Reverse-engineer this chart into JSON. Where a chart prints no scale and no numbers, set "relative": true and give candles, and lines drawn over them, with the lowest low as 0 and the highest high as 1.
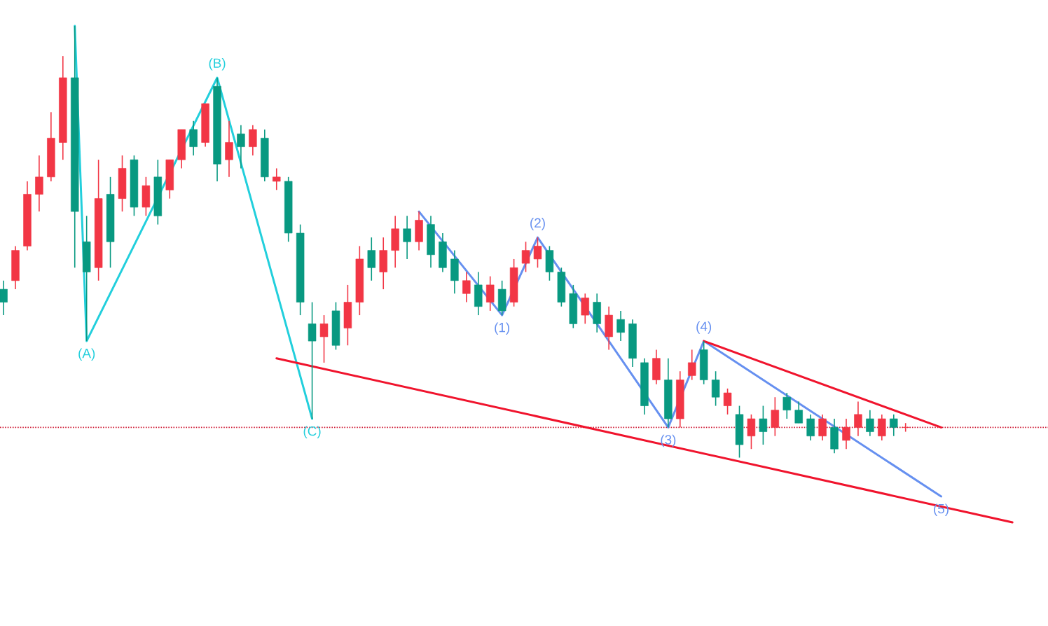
{
  "chart_data": {
    "type": "candlestick",
    "relative": true,
    "categories": [
      null,
      null,
      null,
      null,
      null,
      null,
      null,
      null,
      null,
      null,
      null,
      null,
      null,
      null,
      null,
      null,
      null,
      null,
      null,
      null,
      null,
      null,
      null,
      null,
      null,
      null,
      null,
      null,
      null,
      null,
      null,
      null,
      null,
      null,
      null,
      null,
      null,
      null,
      null,
      null,
      null,
      null,
      null,
      null,
      null,
      null,
      null,
      null,
      null,
      null,
      null,
      null,
      null,
      null,
      null,
      null,
      null,
      null,
      null,
      null,
      null,
      null,
      null,
      null,
      null,
      null,
      null,
      null,
      null,
      null,
      null,
      null,
      null,
      null,
      null,
      null,
      null,
      null,
      null,
      null,
      null,
      null,
      null,
      null,
      null,
      null,
      null
    ],
    "ohlc": [
      [
        0.39,
        0.41,
        0.33,
        0.36
      ],
      [
        0.41,
        0.49,
        0.39,
        0.48
      ],
      [
        0.49,
        0.64,
        0.48,
        0.61
      ],
      [
        0.61,
        0.7,
        0.57,
        0.65
      ],
      [
        0.65,
        0.8,
        0.64,
        0.74
      ],
      [
        0.73,
        0.93,
        0.69,
        0.88
      ],
      [
        0.88,
        1.0,
        0.44,
        0.57
      ],
      [
        0.5,
        0.56,
        0.27,
        0.43
      ],
      [
        0.44,
        0.69,
        0.41,
        0.6
      ],
      [
        0.61,
        0.65,
        0.44,
        0.5
      ],
      [
        0.6,
        0.7,
        0.57,
        0.67
      ],
      [
        0.69,
        0.7,
        0.56,
        0.58
      ],
      [
        0.58,
        0.65,
        0.56,
        0.63
      ],
      [
        0.65,
        0.69,
        0.54,
        0.56
      ],
      [
        0.62,
        0.69,
        0.6,
        0.69
      ],
      [
        0.69,
        0.76,
        0.67,
        0.76
      ],
      [
        0.76,
        0.78,
        0.7,
        0.72
      ],
      [
        0.73,
        0.82,
        0.72,
        0.82
      ],
      [
        0.86,
        0.88,
        0.64,
        0.68
      ],
      [
        0.69,
        0.78,
        0.65,
        0.73
      ],
      [
        0.75,
        0.77,
        0.67,
        0.72
      ],
      [
        0.72,
        0.77,
        0.7,
        0.76
      ],
      [
        0.74,
        0.76,
        0.64,
        0.65
      ],
      [
        0.64,
        0.67,
        0.62,
        0.65
      ],
      [
        0.64,
        0.65,
        0.5,
        0.52
      ],
      [
        0.52,
        0.54,
        0.33,
        0.36
      ],
      [
        0.31,
        0.36,
        0.09,
        0.27
      ],
      [
        0.28,
        0.33,
        0.22,
        0.31
      ],
      [
        0.34,
        0.36,
        0.25,
        0.26
      ],
      [
        0.3,
        0.4,
        0.26,
        0.36
      ],
      [
        0.36,
        0.49,
        0.33,
        0.46
      ],
      [
        0.48,
        0.51,
        0.41,
        0.44
      ],
      [
        0.43,
        0.51,
        0.39,
        0.48
      ],
      [
        0.48,
        0.56,
        0.44,
        0.53
      ],
      [
        0.53,
        0.56,
        0.46,
        0.5
      ],
      [
        0.5,
        0.57,
        0.48,
        0.55
      ],
      [
        0.54,
        0.56,
        0.44,
        0.47
      ],
      [
        0.5,
        0.52,
        0.43,
        0.44
      ],
      [
        0.46,
        0.48,
        0.38,
        0.41
      ],
      [
        0.38,
        0.43,
        0.36,
        0.41
      ],
      [
        0.4,
        0.43,
        0.33,
        0.35
      ],
      [
        0.36,
        0.42,
        0.34,
        0.4
      ],
      [
        0.39,
        0.41,
        0.33,
        0.34
      ],
      [
        0.36,
        0.46,
        0.35,
        0.44
      ],
      [
        0.45,
        0.5,
        0.43,
        0.48
      ],
      [
        0.46,
        0.51,
        0.44,
        0.49
      ],
      [
        0.48,
        0.49,
        0.41,
        0.43
      ],
      [
        0.43,
        0.44,
        0.35,
        0.36
      ],
      [
        0.38,
        0.4,
        0.3,
        0.31
      ],
      [
        0.33,
        0.38,
        0.31,
        0.37
      ],
      [
        0.36,
        0.38,
        0.29,
        0.31
      ],
      [
        0.28,
        0.35,
        0.25,
        0.33
      ],
      [
        0.32,
        0.34,
        0.27,
        0.29
      ],
      [
        0.31,
        0.32,
        0.21,
        0.23
      ],
      [
        0.22,
        0.23,
        0.1,
        0.12
      ],
      [
        0.18,
        0.25,
        0.17,
        0.23
      ],
      [
        0.18,
        0.23,
        0.07,
        0.09
      ],
      [
        0.09,
        0.2,
        0.07,
        0.18
      ],
      [
        0.19,
        0.25,
        0.18,
        0.22
      ],
      [
        0.25,
        0.27,
        0.17,
        0.18
      ],
      [
        0.18,
        0.2,
        0.12,
        0.14
      ],
      [
        0.12,
        0.16,
        0.1,
        0.15
      ],
      [
        0.1,
        0.12,
        0.0,
        0.03
      ],
      [
        0.05,
        0.1,
        0.02,
        0.09
      ],
      [
        0.09,
        0.12,
        0.03,
        0.06
      ],
      [
        0.07,
        0.14,
        0.05,
        0.11
      ],
      [
        0.14,
        0.15,
        0.09,
        0.11
      ],
      [
        0.11,
        0.13,
        0.08,
        0.08
      ],
      [
        0.09,
        0.1,
        0.04,
        0.05
      ],
      [
        0.05,
        0.1,
        0.04,
        0.09
      ],
      [
        0.07,
        0.09,
        0.01,
        0.02
      ],
      [
        0.04,
        0.09,
        0.02,
        0.07
      ],
      [
        0.07,
        0.13,
        0.05,
        0.1
      ],
      [
        0.09,
        0.11,
        0.05,
        0.06
      ],
      [
        0.05,
        0.1,
        0.04,
        0.09
      ],
      [
        0.09,
        0.1,
        0.05,
        0.07
      ],
      [
        0.07,
        0.08,
        0.06,
        0.07
      ],
      null,
      null,
      null,
      null,
      null,
      null,
      null,
      null,
      null,
      null
    ],
    "colors": [
      "#089981",
      "#f23645",
      "#f23645",
      "#f23645",
      "#f23645",
      "#f23645",
      "#089981",
      "#089981",
      "#f23645",
      "#089981",
      "#f23645",
      "#089981",
      "#f23645",
      "#089981",
      "#f23645",
      "#f23645",
      "#089981",
      "#f23645",
      "#089981",
      "#f23645",
      "#089981",
      "#f23645",
      "#089981",
      "#f23645",
      "#089981",
      "#089981",
      "#089981",
      "#f23645",
      "#089981",
      "#f23645",
      "#f23645",
      "#089981",
      "#f23645",
      "#f23645",
      "#089981",
      "#f23645",
      "#089981",
      "#089981",
      "#089981",
      "#f23645",
      "#089981",
      "#f23645",
      "#089981",
      "#f23645",
      "#f23645",
      "#f23645",
      "#089981",
      "#089981",
      "#089981",
      "#f23645",
      "#089981",
      "#f23645",
      "#089981",
      "#089981",
      "#089981",
      "#f23645",
      "#089981",
      "#f23645",
      "#f23645",
      "#089981",
      "#089981",
      "#f23645",
      "#089981",
      "#f23645",
      "#089981",
      "#f23645",
      "#089981",
      "#089981",
      "#089981",
      "#f23645",
      "#089981",
      "#f23645",
      "#f23645",
      "#089981",
      "#f23645",
      "#089981",
      "#f23645",
      null,
      null,
      null,
      null,
      null,
      null,
      null,
      null,
      null,
      null
    ],
    "series": [
      {
        "type": "line",
        "color": "#22cfdc",
        "values": [
          null,
          null,
          null,
          null,
          null,
          null,
          1.0,
          0.27,
          null,
          null,
          null,
          null,
          null,
          null,
          null,
          null,
          null,
          null,
          0.88,
          null,
          null,
          null,
          null,
          null,
          null,
          null,
          0.09,
          null,
          null,
          null,
          null,
          null,
          null,
          null,
          null,
          null,
          null,
          null,
          null,
          null,
          null,
          null,
          null,
          null,
          null,
          null,
          null,
          null,
          null,
          null,
          null,
          null,
          null,
          null,
          null,
          null,
          null,
          null,
          null,
          null,
          null,
          null,
          null,
          null,
          null,
          null,
          null,
          null,
          null,
          null,
          null,
          null,
          null,
          null,
          null,
          null,
          null,
          null,
          null,
          null,
          null,
          null,
          null,
          null,
          null,
          null,
          null
        ]
      },
      {
        "type": "line",
        "color": "#6690f0",
        "values": [
          null,
          null,
          null,
          null,
          null,
          null,
          null,
          null,
          null,
          null,
          null,
          null,
          null,
          null,
          null,
          null,
          null,
          null,
          null,
          null,
          null,
          null,
          null,
          null,
          null,
          null,
          null,
          null,
          null,
          null,
          null,
          null,
          null,
          null,
          null,
          0.57,
          null,
          null,
          null,
          null,
          null,
          null,
          0.33,
          null,
          null,
          0.51,
          null,
          null,
          null,
          null,
          null,
          null,
          null,
          null,
          null,
          null,
          0.07,
          null,
          null,
          0.27,
          null,
          null,
          null,
          null,
          null,
          null,
          null,
          null,
          null,
          null,
          null,
          null,
          null,
          null,
          null,
          null,
          null,
          null,
          null,
          -0.09,
          null,
          null,
          null,
          null,
          null,
          null,
          null
        ]
      },
      {
        "type": "line",
        "color": "#f0142d",
        "values": [
          null,
          null,
          null,
          null,
          null,
          null,
          null,
          null,
          null,
          null,
          null,
          null,
          null,
          null,
          null,
          null,
          null,
          null,
          null,
          null,
          null,
          null,
          null,
          0.23,
          null,
          null,
          null,
          null,
          null,
          null,
          null,
          null,
          null,
          null,
          null,
          null,
          null,
          null,
          null,
          null,
          null,
          null,
          null,
          null,
          null,
          null,
          null,
          null,
          null,
          null,
          null,
          null,
          null,
          null,
          null,
          null,
          null,
          null,
          null,
          null,
          null,
          null,
          null,
          null,
          null,
          null,
          null,
          null,
          null,
          null,
          null,
          null,
          null,
          null,
          null,
          null,
          null,
          null,
          null,
          null,
          null,
          null,
          null,
          null,
          null,
          -0.15,
          null
        ]
      },
      {
        "type": "line",
        "color": "#f0142d",
        "values": [
          null,
          null,
          null,
          null,
          null,
          null,
          null,
          null,
          null,
          null,
          null,
          null,
          null,
          null,
          null,
          null,
          null,
          null,
          null,
          null,
          null,
          null,
          null,
          null,
          null,
          null,
          null,
          null,
          null,
          null,
          null,
          null,
          null,
          null,
          null,
          null,
          null,
          null,
          null,
          null,
          null,
          null,
          null,
          null,
          null,
          null,
          null,
          null,
          null,
          null,
          null,
          null,
          null,
          null,
          null,
          null,
          null,
          null,
          null,
          0.27,
          null,
          null,
          null,
          null,
          null,
          null,
          null,
          null,
          null,
          null,
          null,
          null,
          null,
          null,
          null,
          null,
          null,
          null,
          null,
          0.07,
          null,
          null,
          null,
          null,
          null,
          null,
          null
        ]
      }
    ],
    "ref_lines": [
      {
        "axis": "y",
        "value": 0.07,
        "color": "#d0203a",
        "line_style": "dotted"
      }
    ],
    "annotations": [
      "(A)",
      "(B)",
      "(C)",
      "(1)",
      "(2)",
      "(3)",
      "(4)",
      "(5)"
    ]
  }
}
